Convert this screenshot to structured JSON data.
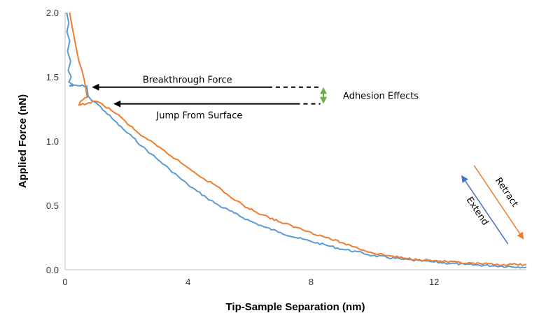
{
  "chart_data": {
    "type": "line",
    "title": "",
    "xlabel": "Tip-Sample Separation (nm)",
    "ylabel": "Applied Force (nN)",
    "xlim": [
      0,
      15
    ],
    "ylim": [
      0,
      2.0
    ],
    "xticks": [
      0,
      4,
      8,
      12
    ],
    "xtick_labels": [
      "0",
      "4",
      "8",
      "12"
    ],
    "yticks": [
      0,
      0.5,
      1.0,
      1.5,
      2.0
    ],
    "ytick_labels": [
      "0.0",
      "0.5",
      "1.0",
      "1.5",
      "2.0"
    ],
    "grid": false,
    "series": [
      {
        "name": "Extend",
        "color": "#5b9bd5",
        "x": [
          0.05,
          0.12,
          0.06,
          0.15,
          0.08,
          0.18,
          0.1,
          0.2,
          0.12,
          0.25,
          0.15,
          0.7,
          0.75,
          0.85,
          1.0,
          1.3,
          1.6,
          1.9,
          2.2,
          2.5,
          2.8,
          3.1,
          3.4,
          3.7,
          4.0,
          4.3,
          4.6,
          5.0,
          5.5,
          6.0,
          6.5,
          7.0,
          7.5,
          8.0,
          8.5,
          9.0,
          9.5,
          10.0,
          11.0,
          12.0,
          13.0,
          14.0,
          15.0
        ],
        "y": [
          2.0,
          1.92,
          1.85,
          1.78,
          1.7,
          1.62,
          1.55,
          1.5,
          1.46,
          1.44,
          1.43,
          1.43,
          1.35,
          1.32,
          1.3,
          1.23,
          1.16,
          1.09,
          1.03,
          0.96,
          0.9,
          0.84,
          0.78,
          0.72,
          0.66,
          0.61,
          0.56,
          0.5,
          0.44,
          0.38,
          0.33,
          0.29,
          0.25,
          0.22,
          0.19,
          0.16,
          0.14,
          0.11,
          0.08,
          0.06,
          0.04,
          0.03,
          0.02
        ]
      },
      {
        "name": "Retract",
        "color": "#ed7d31",
        "x": [
          0.15,
          0.22,
          0.3,
          0.38,
          0.45,
          0.55,
          0.62,
          0.68,
          0.72,
          0.5,
          0.45,
          0.7,
          0.9,
          1.2,
          1.5,
          1.8,
          2.1,
          2.4,
          2.7,
          3.0,
          3.3,
          3.6,
          3.9,
          4.2,
          4.5,
          4.8,
          5.1,
          5.4,
          5.8,
          6.2,
          6.6,
          7.0,
          7.5,
          8.0,
          8.5,
          9.0,
          9.5,
          10.0,
          10.5,
          11.0,
          12.0,
          13.0,
          14.0,
          15.0
        ],
        "y": [
          2.0,
          1.9,
          1.8,
          1.7,
          1.62,
          1.55,
          1.48,
          1.4,
          1.34,
          1.31,
          1.28,
          1.29,
          1.31,
          1.29,
          1.24,
          1.19,
          1.12,
          1.06,
          1.01,
          0.96,
          0.91,
          0.86,
          0.81,
          0.76,
          0.71,
          0.67,
          0.62,
          0.56,
          0.5,
          0.45,
          0.41,
          0.37,
          0.33,
          0.29,
          0.25,
          0.21,
          0.17,
          0.13,
          0.11,
          0.09,
          0.07,
          0.05,
          0.04,
          0.04
        ]
      }
    ],
    "annotations": {
      "breakthrough": {
        "text": "Breakthrough Force",
        "y": 1.42,
        "x_start": 6.6,
        "x_end": 0.9,
        "dash_end": 8.3
      },
      "jump": {
        "text": "Jump From Surface",
        "y": 1.29,
        "x_start": 7.5,
        "x_end": 1.6,
        "dash_end": 8.3
      },
      "adhesion": {
        "text": "Adhesion Effects",
        "color": "#70ad47",
        "x": 8.4,
        "y_top": 1.42,
        "y_bottom": 1.29
      },
      "extend_arrow": {
        "text": "Extend",
        "color": "#4472c4",
        "from": [
          14.4,
          0.2
        ],
        "to": [
          12.9,
          0.73
        ]
      },
      "retract_arrow": {
        "text": "Retract",
        "color": "#ed7d31",
        "from": [
          13.3,
          0.81
        ],
        "to": [
          14.9,
          0.24
        ]
      }
    }
  }
}
